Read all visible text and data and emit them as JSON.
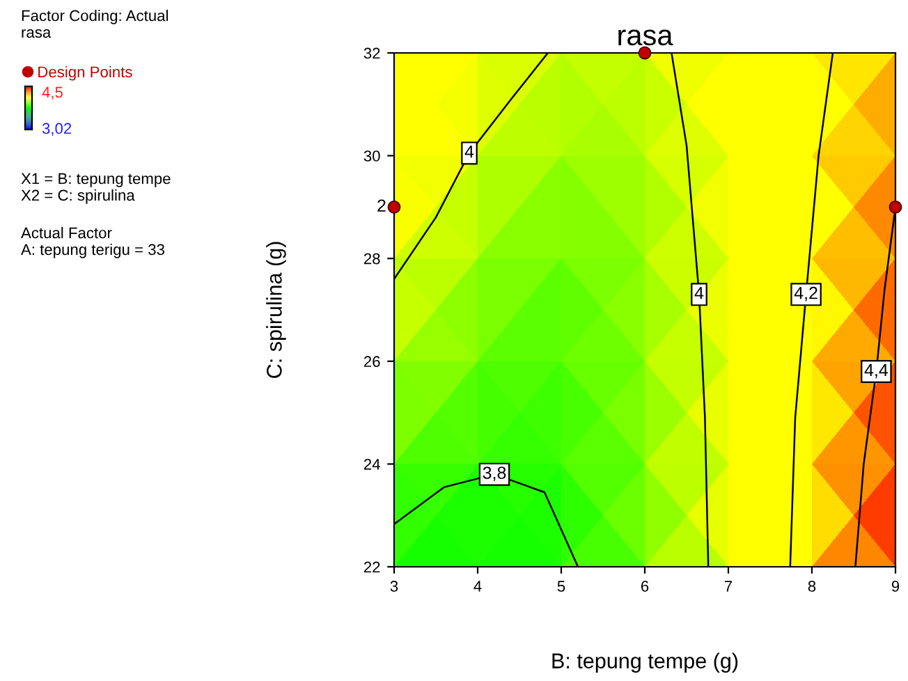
{
  "chart_data": {
    "type": "line",
    "title": "rasa",
    "xlabel": "B: tepung tempe (g)",
    "ylabel": "C: spirulina (g)",
    "xlim": [
      3,
      9
    ],
    "xticks": [
      3,
      4,
      5,
      6,
      7,
      8,
      9
    ],
    "ylim": [
      22,
      32
    ],
    "yticks": [
      22,
      24,
      26,
      28,
      30,
      32
    ],
    "legend": "left",
    "series": [
      {
        "color": "#000000",
        "x": [
          3,
          3.5,
          3.9,
          4.4,
          4.84
        ],
        "values": [
          27.6,
          28.8,
          30.05,
          31.1,
          32
        ]
      },
      {
        "color": "#000000",
        "x": [
          6.32,
          6.5,
          6.65,
          6.72,
          6.76
        ],
        "values": [
          32,
          30.2,
          27.3,
          24.9,
          22
        ]
      },
      {
        "color": "#000000",
        "x": [
          3,
          3.6,
          4.2,
          4.8,
          5.2
        ],
        "values": [
          22.83,
          23.55,
          23.8,
          23.45,
          22
        ]
      },
      {
        "color": "#000000",
        "x": [
          8.25,
          8.08,
          7.93,
          7.8,
          7.74
        ],
        "values": [
          32,
          30,
          27.3,
          24.9,
          22
        ]
      },
      {
        "color": "#000000",
        "x": [
          9,
          8.87,
          8.77,
          8.62,
          8.52
        ],
        "values": [
          29,
          27.4,
          25.8,
          24,
          22
        ]
      },
      {
        "type": "scatter",
        "name": "Design Points",
        "color": "#c00000",
        "x": [
          3,
          6,
          9
        ],
        "values": [
          29,
          32,
          29
        ]
      }
    ],
    "annotations": [
      "Factor Coding: Actual\nrasa",
      "4,5",
      "3,02",
      "X1 = B: tepung tempe\nX2 = C: spirulina",
      "Actual Factor\nA: tepung terigu = 33",
      {
        "text": "2",
        "x": 3,
        "y": 29
      },
      {
        "text": "4",
        "x": 3.9,
        "y": 30.05
      },
      {
        "text": "4",
        "x": 6.65,
        "y": 27.3
      },
      {
        "text": "3,8",
        "x": 4.2,
        "y": 23.8
      },
      {
        "text": "4,2",
        "x": 7.93,
        "y": 27.3
      },
      {
        "text": "4,4",
        "x": 8.77,
        "y": 25.8
      }
    ]
  }
}
